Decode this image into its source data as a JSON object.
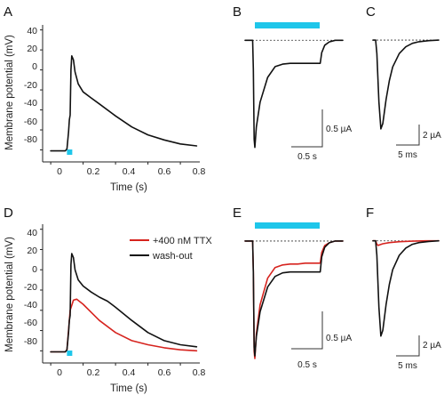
{
  "colors": {
    "stim": "#1ec6ea",
    "control": "#111111",
    "ttx": "#d6231e",
    "baseline": "#333333"
  },
  "panels": {
    "A": {
      "label": "A"
    },
    "B": {
      "label": "B"
    },
    "C": {
      "label": "C"
    },
    "D": {
      "label": "D"
    },
    "E": {
      "label": "E"
    },
    "F": {
      "label": "F"
    }
  },
  "axes": {
    "ylabel": "Membrane potential (mV)",
    "xlabel": "Time (s)",
    "yticks": [
      "40",
      "20",
      "0",
      "-20",
      "-40",
      "-60",
      "-80"
    ],
    "xticks": [
      "0",
      "0.2",
      "0.4",
      "0.6",
      "0.8"
    ]
  },
  "scalebars": {
    "current_slow": "0.5 µA",
    "time_slow": "0.5 s",
    "current_fast": "2 µA",
    "time_fast": "5 ms"
  },
  "legend": {
    "ttx": "+400 nM TTX",
    "washout": "wash-out"
  },
  "chart_data": [
    {
      "panel": "A",
      "type": "line",
      "xlabel": "Time (s)",
      "ylabel": "Membrane potential (mV)",
      "xlim": [
        -0.05,
        0.92
      ],
      "ylim": [
        -92,
        45
      ],
      "stimulus": {
        "start": 0.1,
        "end": 0.13
      },
      "series": [
        {
          "x": [
            0,
            0.09,
            0.1,
            0.11,
            0.115,
            0.12,
            0.125,
            0.13,
            0.14,
            0.15,
            0.17,
            0.2,
            0.25,
            0.3,
            0.4,
            0.5,
            0.6,
            0.7,
            0.8,
            0.9
          ],
          "values": [
            -81,
            -81,
            -79,
            -62,
            -50,
            -45,
            0,
            14,
            10,
            -2,
            -14,
            -22,
            -28,
            -34,
            -46,
            -57,
            -65,
            -70,
            -74,
            -76
          ]
        }
      ]
    },
    {
      "panel": "D",
      "type": "line",
      "xlabel": "Time (s)",
      "ylabel": "Membrane potential (mV)",
      "xlim": [
        -0.05,
        0.92
      ],
      "ylim": [
        -92,
        45
      ],
      "stimulus": {
        "start": 0.1,
        "end": 0.13
      },
      "series": [
        {
          "name": "+400 nM TTX",
          "x": [
            0,
            0.09,
            0.1,
            0.12,
            0.14,
            0.16,
            0.2,
            0.25,
            0.3,
            0.4,
            0.5,
            0.6,
            0.7,
            0.8,
            0.9
          ],
          "values": [
            -81,
            -81,
            -79,
            -40,
            -30,
            -29,
            -34,
            -42,
            -50,
            -62,
            -70,
            -74,
            -77,
            -79,
            -80
          ]
        },
        {
          "name": "wash-out",
          "x": [
            0,
            0.09,
            0.1,
            0.11,
            0.115,
            0.12,
            0.125,
            0.13,
            0.14,
            0.15,
            0.17,
            0.2,
            0.25,
            0.3,
            0.35,
            0.4,
            0.5,
            0.6,
            0.7,
            0.8,
            0.9
          ],
          "values": [
            -81,
            -81,
            -79,
            -62,
            -50,
            -45,
            5,
            16,
            12,
            0,
            -10,
            -16,
            -22,
            -27,
            -31,
            -37,
            -50,
            -62,
            -70,
            -74,
            -76
          ]
        }
      ]
    },
    {
      "panel": "B",
      "type": "line",
      "xlim": [
        0,
        1.3
      ],
      "ylim": [
        -1.4,
        0.1
      ],
      "series": [
        {
          "x": [
            0,
            0.1,
            0.11,
            0.12,
            0.13,
            0.15,
            0.2,
            0.3,
            0.4,
            0.5,
            0.6,
            0.7,
            0.8,
            0.9,
            1.0,
            1.02,
            1.06,
            1.12,
            1.2,
            1.3
          ],
          "values": [
            0,
            0,
            -0.35,
            -1.2,
            -1.3,
            -1.05,
            -0.75,
            -0.45,
            -0.32,
            -0.29,
            -0.28,
            -0.28,
            -0.28,
            -0.28,
            -0.28,
            -0.15,
            -0.06,
            -0.02,
            0,
            0
          ]
        }
      ]
    },
    {
      "panel": "E",
      "type": "line",
      "xlim": [
        0,
        1.3
      ],
      "ylim": [
        -1.4,
        0.1
      ],
      "series": [
        {
          "name": "+400 nM TTX",
          "x": [
            0,
            0.1,
            0.11,
            0.12,
            0.13,
            0.15,
            0.2,
            0.3,
            0.4,
            0.5,
            0.6,
            0.7,
            0.8,
            0.9,
            1.0,
            1.02,
            1.06,
            1.12,
            1.2,
            1.3
          ],
          "values": [
            0,
            0,
            -0.35,
            -1.25,
            -1.33,
            -1.05,
            -0.72,
            -0.42,
            -0.3,
            -0.27,
            -0.26,
            -0.26,
            -0.25,
            -0.25,
            -0.25,
            -0.13,
            -0.05,
            -0.02,
            0,
            0
          ]
        },
        {
          "name": "wash-out",
          "x": [
            0,
            0.1,
            0.11,
            0.12,
            0.13,
            0.15,
            0.2,
            0.3,
            0.4,
            0.5,
            0.6,
            0.7,
            0.8,
            0.9,
            1.0,
            1.02,
            1.06,
            1.12,
            1.2,
            1.3
          ],
          "values": [
            0,
            0,
            -0.35,
            -1.2,
            -1.3,
            -1.08,
            -0.8,
            -0.52,
            -0.4,
            -0.36,
            -0.35,
            -0.35,
            -0.35,
            -0.35,
            -0.35,
            -0.18,
            -0.07,
            -0.02,
            0,
            0
          ]
        }
      ]
    },
    {
      "panel": "C",
      "type": "line",
      "xlim": [
        0,
        20
      ],
      "ylim": [
        -3.8,
        0.3
      ],
      "series": [
        {
          "x": [
            0,
            0.8,
            1.2,
            1.8,
            2.4,
            3,
            4,
            5,
            6,
            8,
            10,
            12,
            14,
            17,
            20
          ],
          "values": [
            0,
            0,
            -0.5,
            -2.3,
            -3.3,
            -3.1,
            -2.2,
            -1.5,
            -1.0,
            -0.5,
            -0.25,
            -0.12,
            -0.06,
            -0.02,
            0
          ]
        }
      ]
    },
    {
      "panel": "F",
      "type": "line",
      "xlim": [
        0,
        20
      ],
      "ylim": [
        -3.8,
        0.3
      ],
      "series": [
        {
          "name": "+400 nM TTX",
          "x": [
            0,
            0.8,
            1.2,
            1.6,
            2.0,
            3,
            5,
            8,
            12,
            16,
            20
          ],
          "values": [
            0,
            0,
            -0.12,
            -0.16,
            -0.14,
            -0.1,
            -0.06,
            -0.03,
            -0.01,
            0,
            0
          ]
        },
        {
          "name": "wash-out",
          "x": [
            0,
            0.8,
            1.2,
            1.8,
            2.4,
            3,
            4,
            5,
            6,
            8,
            10,
            12,
            14,
            17,
            20
          ],
          "values": [
            0,
            0,
            -0.5,
            -2.3,
            -3.3,
            -3.1,
            -2.2,
            -1.5,
            -1.0,
            -0.5,
            -0.25,
            -0.12,
            -0.06,
            -0.02,
            0
          ]
        }
      ]
    }
  ]
}
